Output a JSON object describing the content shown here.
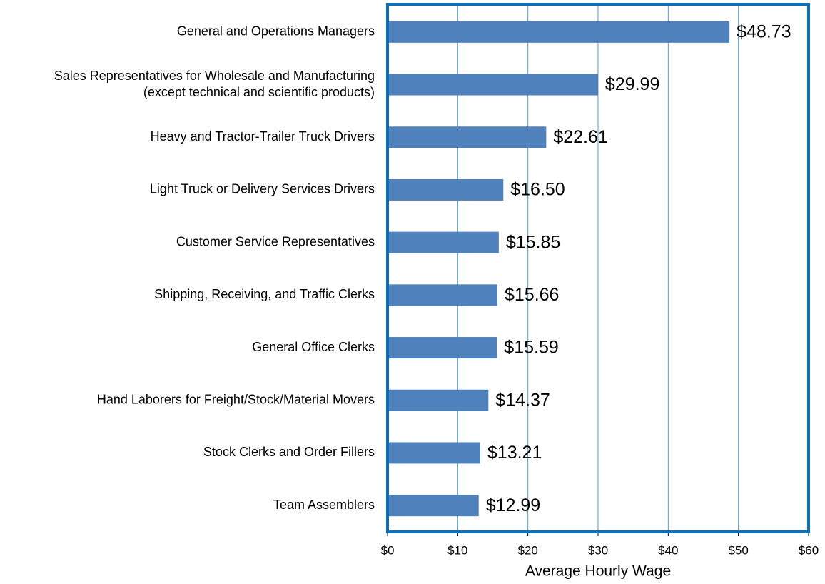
{
  "chart_data": {
    "type": "bar",
    "orientation": "horizontal",
    "x_label": "Average Hourly Wage",
    "categories": [
      "General and Operations Managers",
      "Sales Representatives for Wholesale and Manufacturing\n(except technical and scientific products)",
      "Heavy and Tractor-Trailer Truck Drivers",
      "Light Truck or Delivery Services Drivers",
      "Customer Service Representatives",
      "Shipping, Receiving, and Traffic Clerks",
      "General Office Clerks",
      "Hand Laborers for Freight/Stock/Material Movers",
      "Stock Clerks and Order Fillers",
      "Team Assemblers"
    ],
    "values": [
      48.73,
      29.99,
      22.61,
      16.5,
      15.85,
      15.66,
      15.59,
      14.37,
      13.21,
      12.99
    ],
    "value_labels": [
      "$48.73",
      "$29.99",
      "$22.61",
      "$16.50",
      "$15.85",
      "$15.66",
      "$15.59",
      "$14.37",
      "$13.21",
      "$12.99"
    ],
    "color": "#4f81bd",
    "xlim": [
      0,
      60
    ],
    "xticks": [
      {
        "value": 0,
        "label": "$0"
      },
      {
        "value": 10,
        "label": "$10"
      },
      {
        "value": 20,
        "label": "$20"
      },
      {
        "value": 30,
        "label": "$30"
      },
      {
        "value": 40,
        "label": "$40"
      },
      {
        "value": 50,
        "label": "$50"
      },
      {
        "value": 60,
        "label": "$60"
      }
    ],
    "grid": true
  }
}
